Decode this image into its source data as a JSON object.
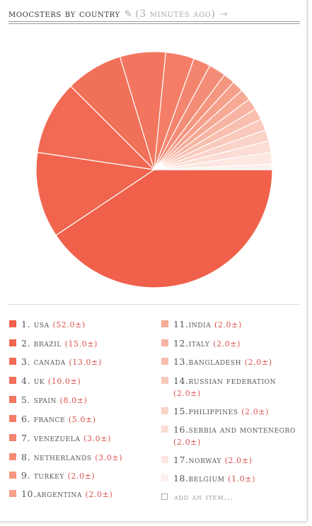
{
  "header": {
    "title": "MOOCSTERS BY COUNTRY",
    "age": "(3 MINUTES AGO)",
    "edit_icon": "pencil-icon",
    "export_icon": "export-icon"
  },
  "chart_data": {
    "type": "pie",
    "categories": [
      "USA",
      "BRAZIL",
      "CANADA",
      "UK",
      "SPAIN",
      "FRANCE",
      "VENEZUELA",
      "NETHERLANDS",
      "TURKEY",
      "ARGENTINA",
      "INDIA",
      "ITALY",
      "BANGLADESH",
      "RUSSIAN FEDERATION",
      "PHILIPPINES",
      "SERBIA AND MONTENEGRO",
      "NORWAY",
      "BELGIUM"
    ],
    "values": [
      52,
      15,
      13,
      10,
      8,
      5,
      3,
      3,
      2,
      2,
      2,
      2,
      2,
      2,
      2,
      2,
      2,
      1
    ],
    "colors": [
      "#f0604b",
      "#f1654f",
      "#f16a54",
      "#f17059",
      "#f2765f",
      "#f37d66",
      "#f3856e",
      "#f48d77",
      "#f49680",
      "#f5a08b",
      "#f6aa96",
      "#f7b4a2",
      "#f8bfae",
      "#f9c9bb",
      "#fad3c8",
      "#fbddd5",
      "#fce7e1",
      "#fdf0ec"
    ],
    "legend": [
      {
        "label": "1. USA",
        "value": "(52.0±)"
      },
      {
        "label": "2. BRAZIL",
        "value": "(15.0±)"
      },
      {
        "label": "3. CANADA",
        "value": "(13.0±)"
      },
      {
        "label": "4. UK",
        "value": "(10.0±)"
      },
      {
        "label": "5. SPAIN",
        "value": "(8.0±)"
      },
      {
        "label": "6. FRANCE",
        "value": "(5.0±)"
      },
      {
        "label": "7. VENEZUELA",
        "value": "(3.0±)"
      },
      {
        "label": "8. NETHERLANDS",
        "value": "(3.0±)"
      },
      {
        "label": "9. TURKEY",
        "value": "(2.0±)"
      },
      {
        "label": "10.ARGENTINA",
        "value": "(2.0±)"
      },
      {
        "label": "11.INDIA",
        "value": "(2.0±)"
      },
      {
        "label": "12.ITALY",
        "value": "(2.0±)"
      },
      {
        "label": "13.BANGLADESH",
        "value": "(2.0±)"
      },
      {
        "label": "14.RUSSIAN FEDERATION",
        "value": "(2.0±)"
      },
      {
        "label": "15.PHILIPPINES",
        "value": "(2.0±)"
      },
      {
        "label": "16.SERBIA AND MONTENEGRO",
        "value": "(2.0±)"
      },
      {
        "label": "17.NORWAY",
        "value": "(2.0±)"
      },
      {
        "label": "18.BELGIUM",
        "value": "(1.0±)"
      }
    ]
  },
  "add_item": {
    "label": "ADD AN ITEM..."
  }
}
